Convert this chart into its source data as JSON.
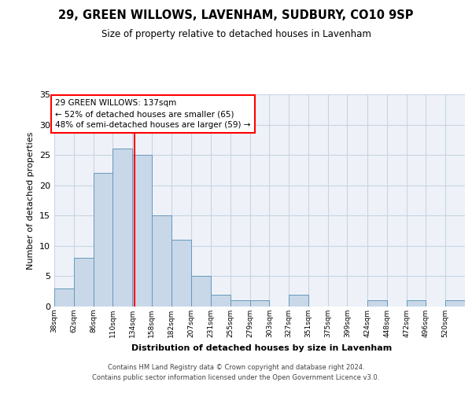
{
  "title": "29, GREEN WILLOWS, LAVENHAM, SUDBURY, CO10 9SP",
  "subtitle": "Size of property relative to detached houses in Lavenham",
  "xlabel": "Distribution of detached houses by size in Lavenham",
  "ylabel": "Number of detached properties",
  "bin_labels": [
    "38sqm",
    "62sqm",
    "86sqm",
    "110sqm",
    "134sqm",
    "158sqm",
    "182sqm",
    "207sqm",
    "231sqm",
    "255sqm",
    "279sqm",
    "303sqm",
    "327sqm",
    "351sqm",
    "375sqm",
    "399sqm",
    "424sqm",
    "448sqm",
    "472sqm",
    "496sqm",
    "520sqm"
  ],
  "bar_heights": [
    3,
    8,
    22,
    26,
    25,
    15,
    11,
    5,
    2,
    1,
    1,
    0,
    2,
    0,
    0,
    0,
    1,
    0,
    1,
    0,
    1
  ],
  "bar_color": "#c8d8e8",
  "bar_edge_color": "#6699bb",
  "grid_color": "#c8d4e4",
  "background_color": "#eef2f8",
  "red_line_color": "red",
  "annotation_text": "29 GREEN WILLOWS: 137sqm\n← 52% of detached houses are smaller (65)\n48% of semi-detached houses are larger (59) →",
  "footer_text": "Contains HM Land Registry data © Crown copyright and database right 2024.\nContains public sector information licensed under the Open Government Licence v3.0.",
  "ylim": [
    0,
    35
  ],
  "yticks": [
    0,
    5,
    10,
    15,
    20,
    25,
    30,
    35
  ],
  "bin_edges": [
    38,
    62,
    86,
    110,
    134,
    158,
    182,
    207,
    231,
    255,
    279,
    303,
    327,
    351,
    375,
    399,
    424,
    448,
    472,
    496,
    520,
    544
  ]
}
